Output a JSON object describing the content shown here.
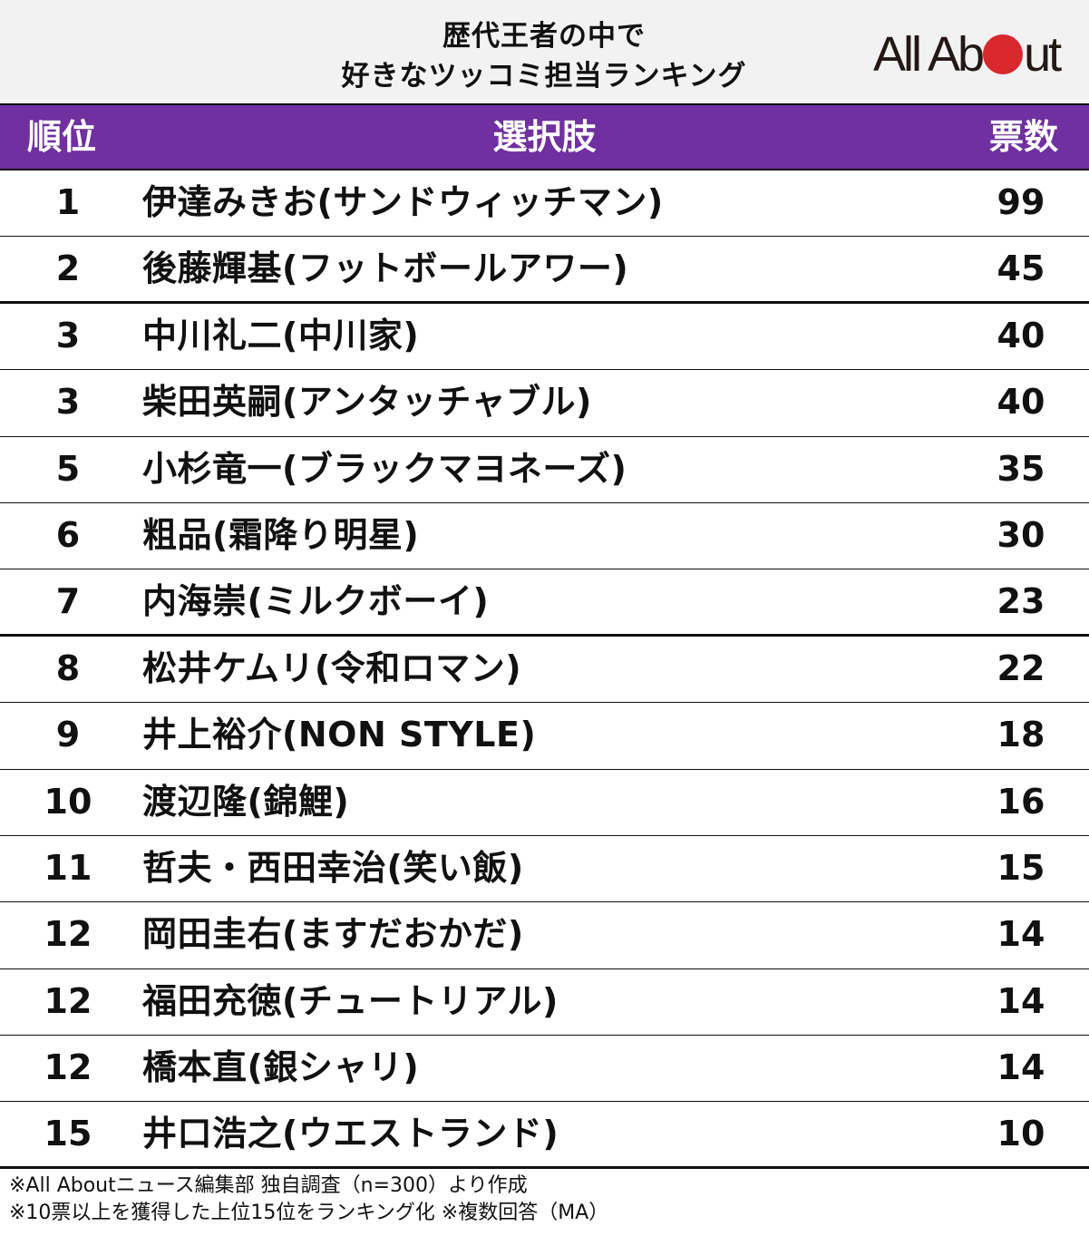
{
  "title": {
    "line1": "歴代王者の中で",
    "line2": "好きなツッコミ担当ランキング"
  },
  "logo": {
    "part1": "All Ab",
    "part2": "ut",
    "dot_color": "#d7282e"
  },
  "header": {
    "rank": "順位",
    "name": "選択肢",
    "votes": "票数",
    "bg_color": "#7030a0"
  },
  "rows": [
    {
      "rank": "1",
      "name": "伊達みきお(サンドウィッチマン)",
      "votes": "99"
    },
    {
      "rank": "2",
      "name": "後藤輝基(フットボールアワー)",
      "votes": "45"
    },
    {
      "rank": "3",
      "name": "中川礼二(中川家)",
      "votes": "40"
    },
    {
      "rank": "3",
      "name": "柴田英嗣(アンタッチャブル)",
      "votes": "40"
    },
    {
      "rank": "5",
      "name": "小杉竜一(ブラックマヨネーズ)",
      "votes": "35"
    },
    {
      "rank": "6",
      "name": "粗品(霜降り明星)",
      "votes": "30"
    },
    {
      "rank": "7",
      "name": "内海崇(ミルクボーイ)",
      "votes": "23"
    },
    {
      "rank": "8",
      "name": "松井ケムリ(令和ロマン)",
      "votes": "22"
    },
    {
      "rank": "9",
      "name": "井上裕介(NON STYLE)",
      "votes": "18"
    },
    {
      "rank": "10",
      "name": "渡辺隆(錦鯉)",
      "votes": "16"
    },
    {
      "rank": "11",
      "name": "哲夫・西田幸治(笑い飯)",
      "votes": "15"
    },
    {
      "rank": "12",
      "name": "岡田圭右(ますだおかだ)",
      "votes": "14"
    },
    {
      "rank": "12",
      "name": "福田充徳(チュートリアル)",
      "votes": "14"
    },
    {
      "rank": "12",
      "name": "橋本直(銀シャリ)",
      "votes": "14"
    },
    {
      "rank": "15",
      "name": "井口浩之(ウエストランド)",
      "votes": "10"
    }
  ],
  "notes": [
    "※All Aboutニュース編集部 独自調査（n=300）より作成",
    "※10票以上を獲得した上位15位をランキング化 ※複数回答（MA）"
  ],
  "chart_data": {
    "type": "table",
    "title": "歴代王者の中で好きなツッコミ担当ランキング",
    "columns": [
      "順位",
      "選択肢",
      "票数"
    ],
    "categories": [
      "伊達みきお(サンドウィッチマン)",
      "後藤輝基(フットボールアワー)",
      "中川礼二(中川家)",
      "柴田英嗣(アンタッチャブル)",
      "小杉竜一(ブラックマヨネーズ)",
      "粗品(霜降り明星)",
      "内海崇(ミルクボーイ)",
      "松井ケムリ(令和ロマン)",
      "井上裕介(NON STYLE)",
      "渡辺隆(錦鯉)",
      "哲夫・西田幸治(笑い飯)",
      "岡田圭右(ますだおかだ)",
      "福田充徳(チュートリアル)",
      "橋本直(銀シャリ)",
      "井口浩之(ウエストランド)"
    ],
    "ranks": [
      1,
      2,
      3,
      3,
      5,
      6,
      7,
      8,
      9,
      10,
      11,
      12,
      12,
      12,
      15
    ],
    "values": [
      99,
      45,
      40,
      40,
      35,
      30,
      23,
      22,
      18,
      16,
      15,
      14,
      14,
      14,
      10
    ],
    "n": 300
  }
}
